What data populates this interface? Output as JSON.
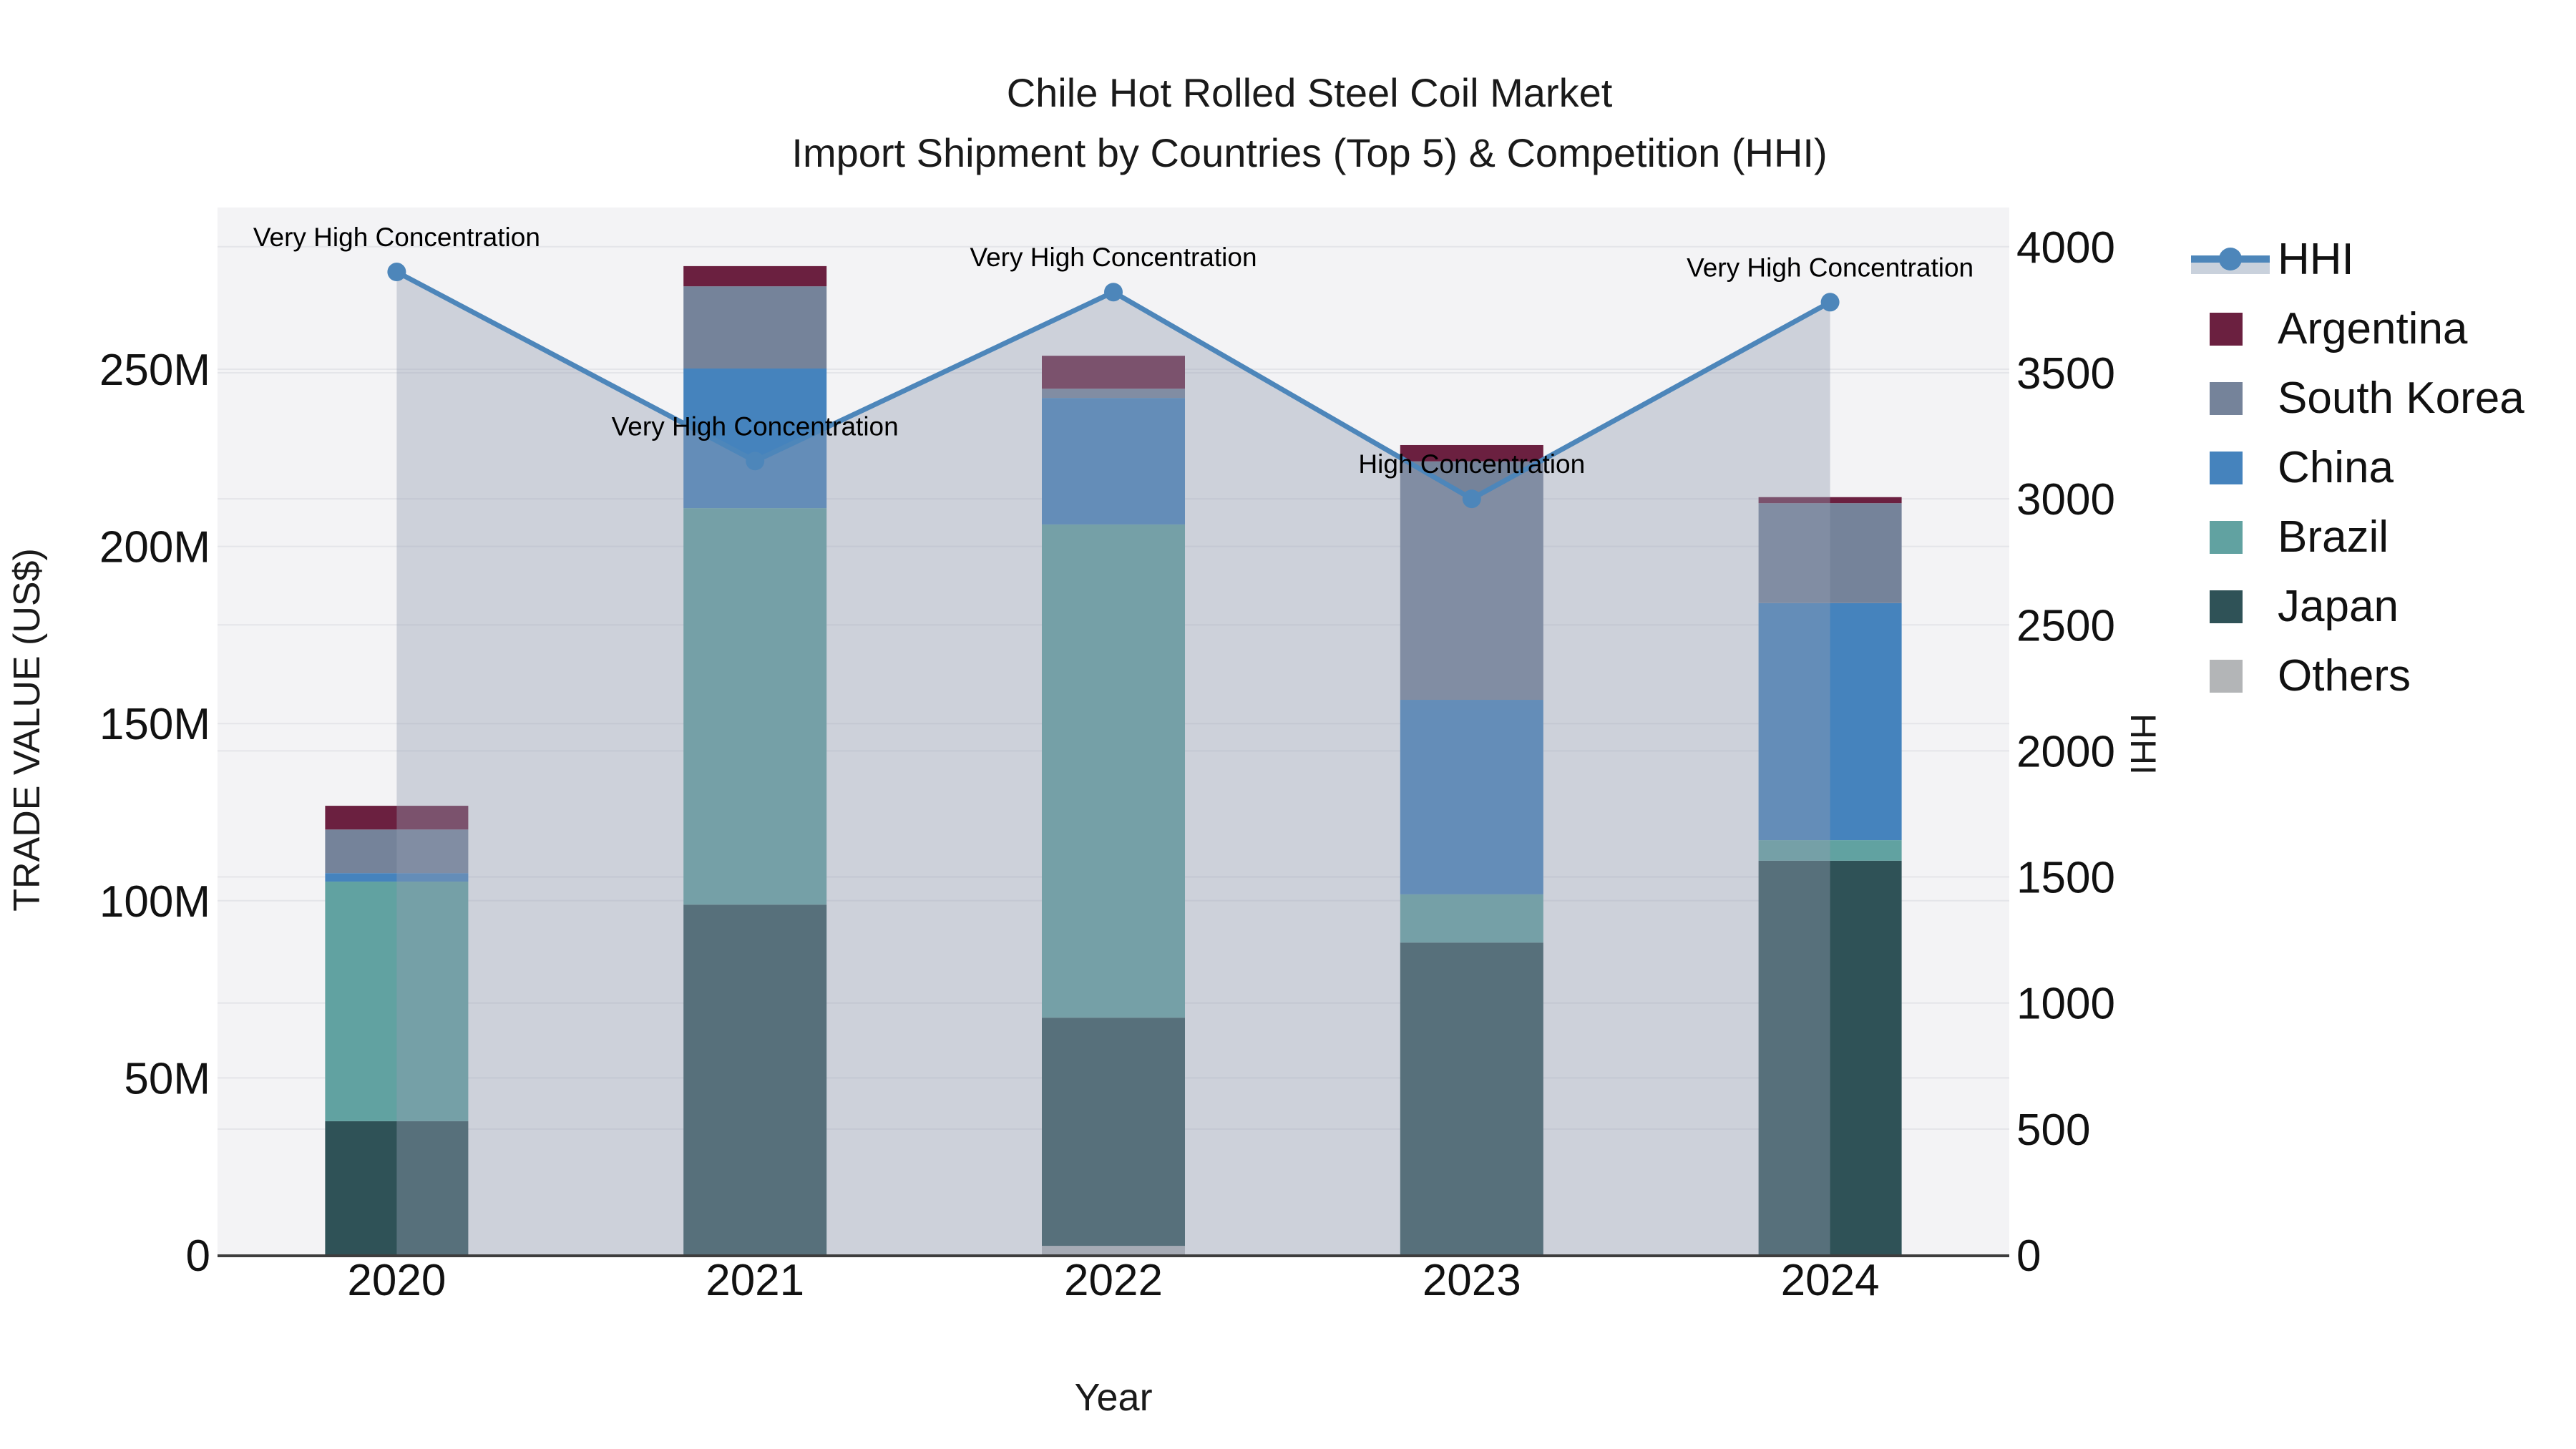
{
  "title": {
    "line1": "Chile Hot Rolled Steel Coil Market",
    "line2": "Import Shipment by Countries (Top 5) & Competition (HHI)"
  },
  "axes": {
    "x_title": "Year",
    "y_left_title": "TRADE VALUE (US$)",
    "y_right_title": "HHI",
    "y_left_ticks": [
      {
        "label": "0",
        "value": 0
      },
      {
        "label": "50M",
        "value": 50
      },
      {
        "label": "100M",
        "value": 100
      },
      {
        "label": "150M",
        "value": 150
      },
      {
        "label": "200M",
        "value": 200
      },
      {
        "label": "250M",
        "value": 250
      }
    ],
    "y_right_ticks": [
      {
        "label": "0",
        "value": 0
      },
      {
        "label": "500",
        "value": 500
      },
      {
        "label": "1000",
        "value": 1000
      },
      {
        "label": "1500",
        "value": 1500
      },
      {
        "label": "2000",
        "value": 2000
      },
      {
        "label": "2500",
        "value": 2500
      },
      {
        "label": "3000",
        "value": 3000
      },
      {
        "label": "3500",
        "value": 3500
      },
      {
        "label": "4000",
        "value": 4000
      }
    ]
  },
  "chart_data": {
    "type": "combo: stacked bar (trade value, left axis) + line with area fill (HHI, right axis)",
    "categories": [
      "2020",
      "2021",
      "2022",
      "2023",
      "2024"
    ],
    "value_unit": "million US$",
    "series": [
      {
        "name": "Others",
        "color": "#b3b5b7",
        "values": [
          0,
          0,
          2.6,
          0,
          0
        ]
      },
      {
        "name": "Japan",
        "color": "#2f5257",
        "values": [
          37.8,
          98.9,
          64.4,
          88.2,
          111.3
        ]
      },
      {
        "name": "Brazil",
        "color": "#61a2a1",
        "values": [
          67.6,
          111.9,
          139.2,
          13.6,
          5.8
        ]
      },
      {
        "name": "China",
        "color": "#4583bd",
        "values": [
          2.4,
          39.4,
          35.7,
          54.9,
          66.9
        ]
      },
      {
        "name": "South Korea",
        "color": "#75839a",
        "values": [
          12.3,
          23.2,
          2.6,
          67.3,
          28.2
        ]
      },
      {
        "name": "Argentina",
        "color": "#6b2040",
        "values": [
          6.7,
          5.7,
          9.3,
          4.6,
          1.7
        ]
      }
    ],
    "bar_totals": [
      126.8,
      279.1,
      253.8,
      228.6,
      213.9
    ],
    "hhi_line": {
      "name": "HHI",
      "color": "#4d86ba",
      "area_fill": "rgba(148,158,177,0.40)",
      "values": [
        3900,
        3150,
        3820,
        3000,
        3780
      ],
      "point_annotations": [
        "Very High Concentration",
        "Very High Concentration",
        "Very High Concentration",
        "High Concentration",
        "Very High Concentration"
      ]
    },
    "ylim_left": [
      0,
      295
    ],
    "ylim_right": [
      0,
      4155
    ],
    "grid": true,
    "legend_position": "right"
  },
  "legend": {
    "items": [
      {
        "label": "HHI",
        "type": "line",
        "color": "#4d86ba",
        "band_color": "#c9d1dc"
      },
      {
        "label": "Argentina",
        "type": "swatch",
        "color": "#6b2040"
      },
      {
        "label": "South Korea",
        "type": "swatch",
        "color": "#75839a"
      },
      {
        "label": "China",
        "type": "swatch",
        "color": "#4583bd"
      },
      {
        "label": "Brazil",
        "type": "swatch",
        "color": "#61a2a1"
      },
      {
        "label": "Japan",
        "type": "swatch",
        "color": "#2f5257"
      },
      {
        "label": "Others",
        "type": "swatch",
        "color": "#b3b5b7"
      }
    ]
  },
  "colors": {
    "plot_bg": "#f3f3f5",
    "grid": "#e4e5e9",
    "axis_line": "#3d3d3d",
    "text": "#111111"
  }
}
